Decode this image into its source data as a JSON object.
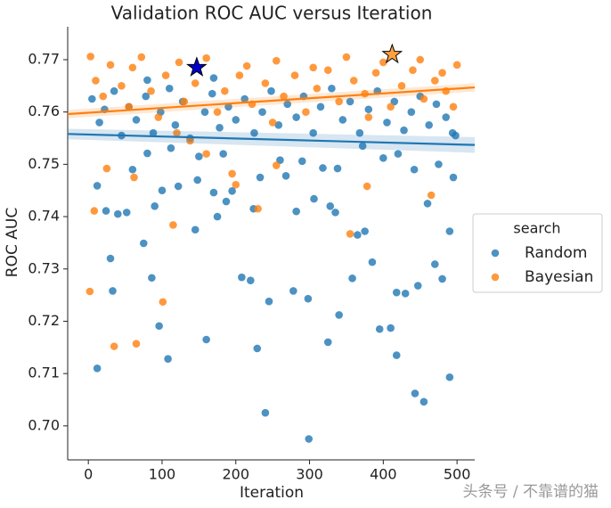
{
  "chart_data": {
    "type": "scatter",
    "title": "Validation ROC AUC versus Iteration",
    "x_label": "Iteration",
    "y_label": "ROC AUC",
    "xlim": [
      -28,
      524
    ],
    "ylim": [
      0.6935,
      0.7763
    ],
    "xticks": [
      0,
      100,
      200,
      300,
      400,
      500
    ],
    "yticks": [
      {
        "value": 0.7,
        "label": "0.70"
      },
      0.71,
      0.72,
      0.73,
      0.74,
      0.75,
      0.76,
      0.77
    ],
    "legend_title": "search",
    "legend_position": "right",
    "series": [
      {
        "name": "Random",
        "color": "#1f77b4",
        "x": [
          12,
          30,
          33,
          108,
          160,
          229,
          240,
          299,
          325,
          340,
          418,
          443,
          455,
          490,
          96,
          86,
          208,
          220,
          245,
          278,
          298,
          358,
          395,
          410,
          418,
          430,
          447,
          480,
          490,
          470,
          385,
          335,
          365,
          375,
          145,
          175,
          187,
          224,
          282,
          306,
          328,
          75,
          52,
          24,
          12,
          40,
          90,
          100,
          122,
          148,
          170,
          195,
          233,
          268,
          290,
          318,
          338,
          400,
          442,
          460,
          475,
          495,
          494,
          60,
          80,
          112,
          150,
          183,
          260,
          372,
          420,
          5,
          15,
          22,
          35,
          45,
          55,
          65,
          78,
          88,
          98,
          110,
          118,
          128,
          138,
          158,
          168,
          178,
          190,
          200,
          212,
          225,
          236,
          248,
          258,
          270,
          282,
          292,
          305,
          315,
          330,
          345,
          355,
          368,
          380,
          392,
          405,
          415,
          428,
          438,
          450,
          462,
          472,
          485,
          498,
          170,
          80
        ],
        "values": [
          0.711,
          0.732,
          0.7258,
          0.7128,
          0.7165,
          0.7148,
          0.7025,
          0.6975,
          0.716,
          0.7212,
          0.7135,
          0.7062,
          0.7046,
          0.7093,
          0.7191,
          0.7283,
          0.7284,
          0.7278,
          0.7238,
          0.7258,
          0.7243,
          0.7282,
          0.7185,
          0.7187,
          0.7255,
          0.7253,
          0.7268,
          0.7281,
          0.7372,
          0.7309,
          0.7313,
          0.7408,
          0.7365,
          0.7372,
          0.7375,
          0.74,
          0.7429,
          0.7415,
          0.741,
          0.7434,
          0.742,
          0.7349,
          0.7408,
          0.7411,
          0.7459,
          0.7405,
          0.742,
          0.745,
          0.7458,
          0.747,
          0.7446,
          0.7449,
          0.7475,
          0.7478,
          0.7506,
          0.7493,
          0.7492,
          0.7512,
          0.749,
          0.7425,
          0.75,
          0.7475,
          0.756,
          0.749,
          0.7521,
          0.7531,
          0.7515,
          0.752,
          0.7508,
          0.7535,
          0.752,
          0.7625,
          0.758,
          0.7605,
          0.764,
          0.7555,
          0.761,
          0.7585,
          0.763,
          0.756,
          0.76,
          0.7645,
          0.7575,
          0.762,
          0.755,
          0.76,
          0.7635,
          0.757,
          0.761,
          0.7585,
          0.7625,
          0.756,
          0.76,
          0.764,
          0.7575,
          0.7615,
          0.759,
          0.763,
          0.756,
          0.761,
          0.7645,
          0.7585,
          0.762,
          0.756,
          0.7605,
          0.764,
          0.758,
          0.762,
          0.7565,
          0.76,
          0.763,
          0.7575,
          0.7615,
          0.759,
          0.7555,
          0.7665,
          0.7661
        ],
        "trend": {
          "x": [
            -28,
            524
          ],
          "values": [
            0.7558,
            0.7537
          ],
          "band_lower": [
            0.7548,
            0.7522
          ],
          "band_upper": [
            0.7568,
            0.7552
          ]
        },
        "best": {
          "x": 147,
          "y": 0.7685,
          "color": "#0000cc"
        }
      },
      {
        "name": "Bayesian",
        "color": "#ff7f0e",
        "x": [
          2,
          35,
          65,
          101,
          8,
          115,
          230,
          355,
          195,
          200,
          378,
          465,
          25,
          62,
          160,
          255,
          138,
          3,
          30,
          72,
          123,
          160,
          215,
          255,
          305,
          350,
          400,
          450,
          500,
          10,
          20,
          45,
          55,
          85,
          95,
          105,
          130,
          145,
          175,
          185,
          205,
          222,
          240,
          265,
          280,
          295,
          310,
          325,
          340,
          360,
          375,
          390,
          410,
          425,
          440,
          455,
          470,
          485,
          495,
          60,
          120,
          250,
          380,
          480
        ],
        "values": [
          0.7257,
          0.7152,
          0.7157,
          0.7237,
          0.7411,
          0.7384,
          0.7415,
          0.7367,
          0.7482,
          0.7461,
          0.7458,
          0.7441,
          0.7492,
          0.7475,
          0.752,
          0.7498,
          0.7545,
          0.7706,
          0.769,
          0.7705,
          0.7695,
          0.7703,
          0.7688,
          0.7698,
          0.7685,
          0.7705,
          0.7695,
          0.77,
          0.769,
          0.766,
          0.763,
          0.765,
          0.761,
          0.764,
          0.759,
          0.767,
          0.762,
          0.7655,
          0.76,
          0.764,
          0.767,
          0.7615,
          0.7655,
          0.763,
          0.767,
          0.76,
          0.7645,
          0.768,
          0.762,
          0.766,
          0.7635,
          0.7675,
          0.761,
          0.765,
          0.768,
          0.7625,
          0.766,
          0.764,
          0.761,
          0.7685,
          0.756,
          0.758,
          0.759,
          0.7675
        ],
        "trend": {
          "x": [
            -28,
            524
          ],
          "values": [
            0.7596,
            0.7647
          ],
          "band_lower": [
            0.7588,
            0.7639
          ],
          "band_upper": [
            0.7604,
            0.7655
          ]
        },
        "best": {
          "x": 412,
          "y": 0.771,
          "color": "#ffa040"
        }
      }
    ],
    "watermark": "头条号 / 不靠谱的猫"
  }
}
